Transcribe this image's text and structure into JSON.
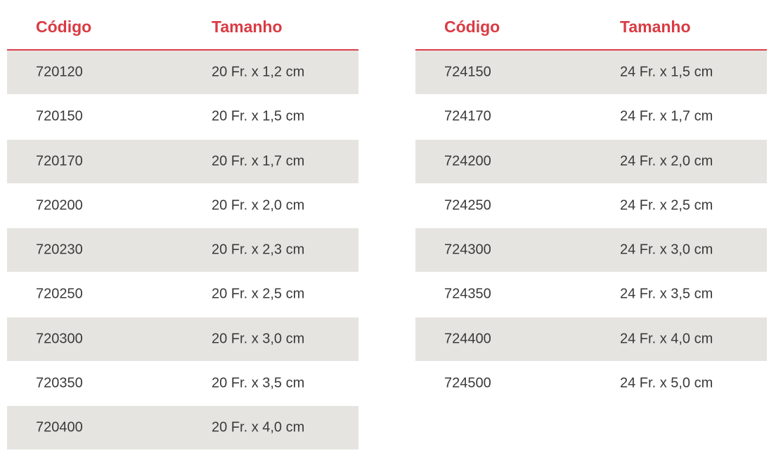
{
  "headers": {
    "code": "Código",
    "size": "Tamanho"
  },
  "colors": {
    "accent": "#d93b44",
    "row_shade": "#e6e4e0",
    "text": "#3a3a3a"
  },
  "table_left": {
    "rows": [
      {
        "code": "720120",
        "size": "20 Fr. x 1,2 cm"
      },
      {
        "code": "720150",
        "size": "20 Fr. x 1,5 cm"
      },
      {
        "code": "720170",
        "size": "20 Fr. x 1,7 cm"
      },
      {
        "code": "720200",
        "size": "20 Fr. x 2,0 cm"
      },
      {
        "code": "720230",
        "size": "20 Fr. x 2,3 cm"
      },
      {
        "code": "720250",
        "size": "20 Fr. x 2,5 cm"
      },
      {
        "code": "720300",
        "size": "20 Fr. x 3,0 cm"
      },
      {
        "code": "720350",
        "size": "20 Fr. x 3,5 cm"
      },
      {
        "code": "720400",
        "size": "20 Fr. x 4,0 cm"
      }
    ]
  },
  "table_right": {
    "rows": [
      {
        "code": "724150",
        "size": "24 Fr. x 1,5 cm"
      },
      {
        "code": "724170",
        "size": "24 Fr. x 1,7 cm"
      },
      {
        "code": "724200",
        "size": "24 Fr. x 2,0 cm"
      },
      {
        "code": "724250",
        "size": "24 Fr. x 2,5 cm"
      },
      {
        "code": "724300",
        "size": "24 Fr. x 3,0 cm"
      },
      {
        "code": "724350",
        "size": "24 Fr. x 3,5 cm"
      },
      {
        "code": "724400",
        "size": "24 Fr. x 4,0 cm"
      },
      {
        "code": "724500",
        "size": "24 Fr. x 5,0 cm"
      }
    ]
  }
}
